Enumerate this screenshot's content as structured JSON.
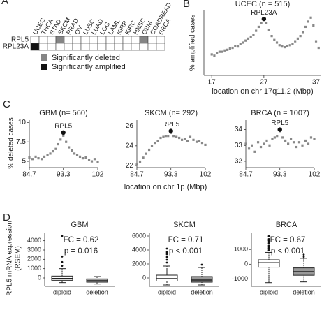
{
  "panel_labels": [
    "A",
    "B",
    "C",
    "D"
  ],
  "labels": {
    "deletion_ylabel": "% deleted cases",
    "deletion_xlabel": "location on chr 1p (Mbp)",
    "expression_ylabel": [
      "RPL5 mRNA expression",
      "(RSEM)"
    ]
  },
  "chart_data": [
    {
      "type": "heatmap",
      "columns": [
        "UCEC",
        "THCA",
        "STAD",
        "SKCM",
        "PRAD",
        "OV",
        "LUSC",
        "LUAD",
        "LGG",
        "LAML",
        "KIRP",
        "KIRC",
        "HNSC",
        "GBM",
        "COADREAD",
        "BRCA"
      ],
      "rows": [
        "RPL5",
        "RPL23A"
      ],
      "legend": [
        {
          "name": "Significantly deleted",
          "color": "#858585",
          "cells": [
            [
              0,
              3
            ],
            [
              0,
              13
            ]
          ]
        },
        {
          "name": "Significantly amplified",
          "color": "#111111",
          "cells": [
            [
              1,
              0
            ]
          ]
        }
      ]
    },
    {
      "type": "scatter",
      "title": "UCEC (n = 515)",
      "ylabel": "% amplified cases",
      "xlabel": "location on chr 17q11.2 (Mbp)",
      "color": "#888888",
      "x": [
        17,
        17.5,
        18,
        18.5,
        19,
        19.5,
        20,
        20.5,
        21,
        21.5,
        22,
        22.5,
        23,
        23.5,
        24,
        24.5,
        25,
        25.5,
        26,
        26.5,
        27,
        27.5,
        28,
        28.5,
        29,
        29.5,
        30,
        30.5,
        31,
        31.5,
        32,
        32.5,
        33,
        33.5,
        34,
        34.5,
        35,
        35.5,
        36,
        36.5,
        37,
        37.5
      ],
      "y": [
        3.2,
        3.0,
        3.4,
        3.6,
        3.6,
        3.8,
        3.9,
        4.1,
        4.2,
        4.5,
        4.4,
        4.8,
        5.0,
        5.3,
        5.6,
        5.9,
        6.2,
        6.8,
        7.4,
        8.0,
        8.5,
        8.0,
        6.9,
        6.0,
        5.4,
        5.0,
        4.6,
        4.4,
        4.3,
        4.5,
        4.6,
        4.8,
        5.2,
        5.6,
        6.0,
        6.6,
        7.4,
        8.2,
        8.8,
        7.6,
        5.2,
        4.2
      ],
      "xlim": [
        15.5,
        38
      ],
      "ylim": [
        0,
        10
      ],
      "xticks": [
        17,
        27,
        37
      ],
      "highlight": {
        "x": 27,
        "y": 8.6,
        "label": "RPL23A"
      }
    },
    {
      "type": "scatter",
      "title": "GBM (n= 560)",
      "color": "#888888",
      "x": [
        84.7,
        85.5,
        86.3,
        87,
        87.8,
        88.5,
        89.3,
        90,
        90.7,
        91.4,
        92,
        92.6,
        93.3,
        94,
        94.7,
        95.4,
        96.1,
        96.8,
        97.5,
        98.2,
        99,
        99.8,
        100.5,
        101.2,
        102
      ],
      "y": [
        5.5,
        5.3,
        5.6,
        5.4,
        5.3,
        5.6,
        5.8,
        6.0,
        6.3,
        6.6,
        7.2,
        7.8,
        8.3,
        7.5,
        6.8,
        6.4,
        6.0,
        5.8,
        5.6,
        5.4,
        5.5,
        5.2,
        5.0,
        5.3,
        4.9
      ],
      "xlim": [
        84.7,
        102
      ],
      "ylim": [
        4.2,
        10.3
      ],
      "xticks": [
        84.7,
        93.3,
        102
      ],
      "yticks": [
        5,
        7.5,
        10
      ],
      "highlight": {
        "x": 93.3,
        "y": 8.7,
        "label": "RPL5"
      }
    },
    {
      "type": "scatter",
      "title": "SKCM (n= 292)",
      "color": "#888888",
      "x": [
        84.7,
        85.5,
        86.3,
        87,
        87.8,
        88.5,
        89.3,
        90,
        90.7,
        91.4,
        92,
        92.6,
        93.3,
        94,
        94.7,
        95.4,
        96.1,
        96.8,
        97.5,
        98.2,
        99,
        99.8,
        100.5,
        101.2,
        102
      ],
      "y": [
        22.1,
        22.4,
        22.8,
        23.2,
        23.6,
        24.0,
        24.3,
        24.5,
        24.8,
        24.9,
        25.0,
        25.0,
        25.3,
        25.0,
        24.9,
        24.8,
        24.6,
        24.7,
        24.5,
        24.9,
        24.6,
        24.4,
        24.5,
        24.3,
        24.1
      ],
      "xlim": [
        84.7,
        102
      ],
      "ylim": [
        21.8,
        26.6
      ],
      "xticks": [
        84.7,
        93.3,
        102
      ],
      "yticks": [
        22,
        24,
        26
      ],
      "highlight": {
        "x": 93.3,
        "y": 25.5,
        "label": "RPL5"
      }
    },
    {
      "type": "scatter",
      "title": "BRCA (n = 1007)",
      "color": "#888888",
      "x": [
        84.7,
        85.5,
        86.3,
        87,
        87.8,
        88.5,
        89.3,
        90,
        90.7,
        91.4,
        92,
        92.6,
        93.3,
        94,
        94.7,
        95.4,
        96.1,
        96.8,
        97.5,
        98.2,
        99,
        99.8,
        100.5,
        101.2,
        102
      ],
      "y": [
        33.1,
        32.8,
        33.0,
        32.6,
        33.2,
        32.9,
        33.1,
        33.3,
        33.0,
        33.4,
        33.5,
        33.6,
        33.9,
        33.5,
        33.3,
        33.1,
        33.4,
        33.2,
        32.9,
        33.2,
        33.0,
        33.3,
        33.1,
        33.5,
        33.4
      ],
      "xlim": [
        84.7,
        102
      ],
      "ylim": [
        31.6,
        34.6
      ],
      "xticks": [
        84.7,
        93.3,
        102
      ],
      "yticks": [
        32,
        33,
        34
      ],
      "highlight": {
        "x": 93.3,
        "y": 34.0,
        "label": "RPL5"
      }
    },
    {
      "type": "box",
      "title": "GBM",
      "annotations": [
        "FC = 0.62",
        "p = 0.016"
      ],
      "categories": [
        "diploid",
        "deletion"
      ],
      "colors": [
        "#ffffff",
        "#999999"
      ],
      "ylim": [
        -900,
        4800
      ],
      "yticks": [
        0,
        1000,
        2000,
        3000,
        4000
      ],
      "boxes": [
        {
          "low": -500,
          "q1": -250,
          "median": -50,
          "q3": 200,
          "high": 1000,
          "outliers": [
            1300,
            1700,
            2300,
            4500
          ]
        },
        {
          "low": -650,
          "q1": -450,
          "median": -300,
          "q3": -100,
          "high": 150,
          "outliers": []
        }
      ]
    },
    {
      "type": "box",
      "title": "SKCM",
      "annotations": [
        "FC = 0.71",
        "p < 0.001"
      ],
      "categories": [
        "diploid",
        "deletion"
      ],
      "colors": [
        "#ffffff",
        "#999999"
      ],
      "ylim": [
        -1200,
        6400
      ],
      "yticks": [
        0,
        2000,
        4000,
        6000
      ],
      "boxes": [
        {
          "low": -1000,
          "q1": -450,
          "median": -100,
          "q3": 400,
          "high": 1700,
          "outliers": [
            2200,
            2600,
            3000,
            3400,
            3700,
            4200
          ]
        },
        {
          "low": -1000,
          "q1": -600,
          "median": -300,
          "q3": 200,
          "high": 1500,
          "outliers": [
            1900
          ]
        }
      ]
    },
    {
      "type": "box",
      "title": "BRCA",
      "annotations": [
        "FC = 0.67",
        "p < 0.001"
      ],
      "categories": [
        "diploid",
        "deletion"
      ],
      "colors": [
        "#ffffff",
        "#999999"
      ],
      "ylim": [
        -1500,
        2100
      ],
      "yticks": [
        -1000,
        0,
        1000
      ],
      "boxes": [
        {
          "low": -1250,
          "q1": -200,
          "median": 100,
          "q3": 300,
          "high": 800,
          "outliers": [
            950,
            1100,
            1250,
            1400,
            1500,
            1600,
            1700,
            1900
          ]
        },
        {
          "low": -1200,
          "q1": -750,
          "median": -500,
          "q3": -250,
          "high": 400,
          "outliers": [
            500,
            650
          ]
        }
      ]
    }
  ]
}
